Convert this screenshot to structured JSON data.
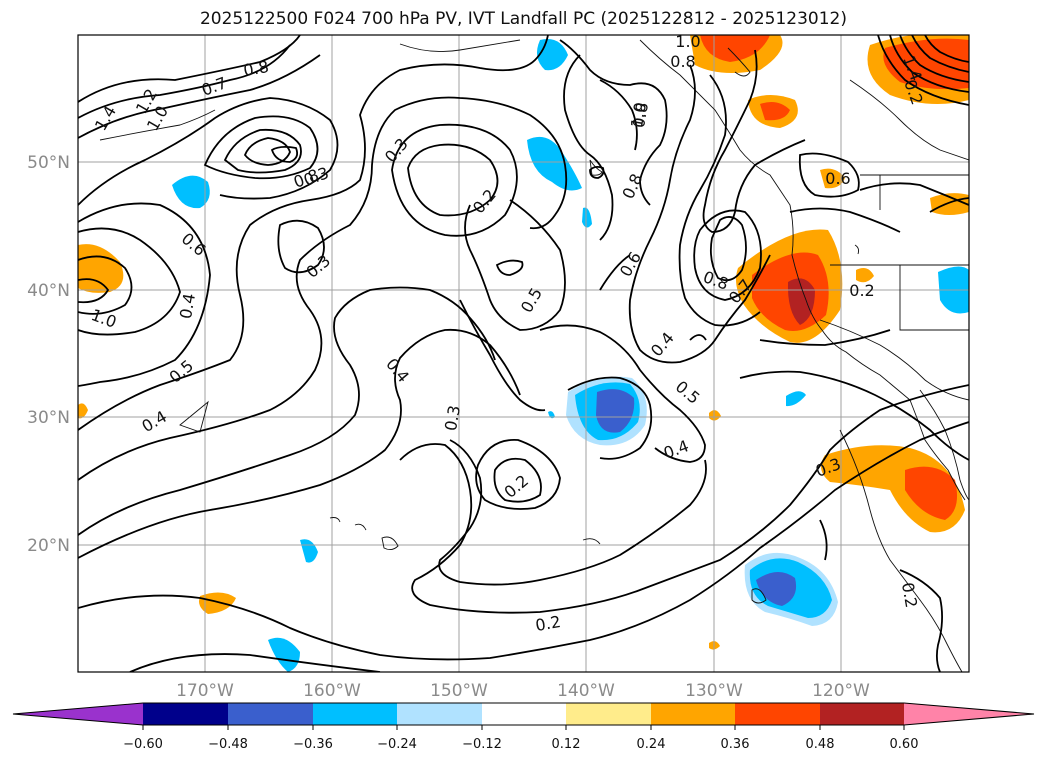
{
  "title": "2025122500 F024 700 hPa PV, IVT Landfall PC (2025122812 - 2025123012)",
  "map": {
    "lat_labels": [
      "50°N",
      "40°N",
      "30°N",
      "20°N"
    ],
    "lon_labels": [
      "170°W",
      "160°W",
      "150°W",
      "140°W",
      "130°W",
      "120°W"
    ],
    "grid": true
  },
  "contour_labels": [
    "1.0",
    "0.8",
    "1.4",
    "1.2",
    "1.0",
    "0.8",
    "0.7",
    "0.8",
    "0.3",
    "0.2",
    "1.0",
    "0.8",
    "0.6",
    "0.5",
    "0.4",
    "0.3",
    "0.2",
    "0.4",
    "0.3",
    "0.5",
    "0.4",
    "0.3",
    "0.2",
    "0.6",
    "0.8",
    "1.0",
    "0.4",
    "0.5",
    "0.4",
    "0.7",
    "0.8",
    "0.2",
    "0.6",
    "0.3",
    "0.2",
    "0.2",
    "1.4"
  ],
  "colorbar": {
    "ticks": [
      "−0.60",
      "−0.48",
      "−0.36",
      "−0.24",
      "−0.12",
      "0.12",
      "0.24",
      "0.36",
      "0.48",
      "0.60"
    ],
    "colors": [
      "#9a32cd",
      "#00008b",
      "#3a5fcd",
      "#00bfff",
      "#b0e2ff",
      "#ffffff",
      "#ffec8b",
      "#ffa500",
      "#ff4500",
      "#b22222",
      "#ff83a8"
    ]
  }
}
